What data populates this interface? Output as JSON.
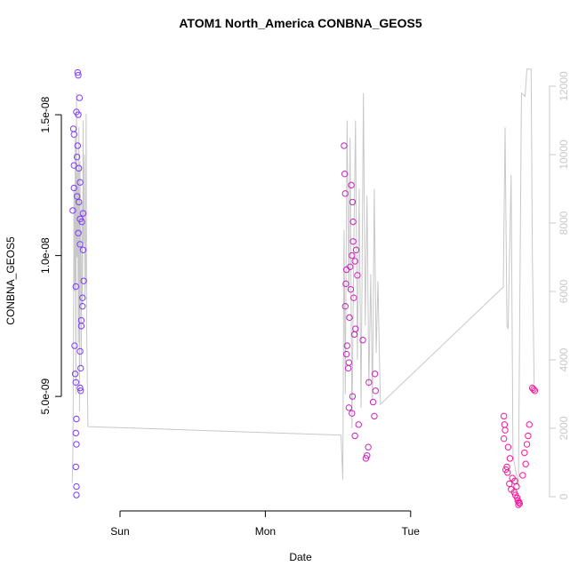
{
  "chart_data": {
    "type": "scatter",
    "title": "ATOM1 North_America CONBNA_GEOS5",
    "x_label": "Date",
    "y_label": "CONBNA_GEOS5",
    "xlim": [
      -9.25,
      70.5
    ],
    "xticks": [
      {
        "value": 0,
        "label": "Sun"
      },
      {
        "value": 24,
        "label": "Mon"
      },
      {
        "value": 48,
        "label": "Tue"
      }
    ],
    "ylim": [
      1.03e-09,
      1.718e-08
    ],
    "yticks": [
      {
        "value": 5e-09,
        "label": "5.0e-09"
      },
      {
        "value": 1e-08,
        "label": "1.0e-08"
      },
      {
        "value": 1.5e-08,
        "label": "1.5e-08"
      }
    ],
    "y2lim": [
      -338,
      12961
    ],
    "y2ticks": [
      0,
      2000,
      4000,
      6000,
      8000,
      10000,
      12000
    ],
    "y2_color": "#c8c8c8",
    "color_range": [
      "#7a3cff",
      "#ff1493"
    ],
    "x": [
      -7.0,
      -6.9,
      -6.7,
      -7.2,
      -6.9,
      -7.7,
      -7.6,
      -7.0,
      -7.1,
      -7.6,
      -6.8,
      -6.6,
      -7.6,
      -7.1,
      -6.8,
      -7.8,
      -6.1,
      -6.6,
      -6.3,
      -6.9,
      -6.6,
      -6.1,
      -6.0,
      -7.3,
      -6.2,
      -6.2,
      -6.4,
      -6.4,
      -7.5,
      -6.6,
      -6.5,
      -7.4,
      -7.3,
      -6.6,
      -6.5,
      -7.2,
      -7.3,
      -7.2,
      -7.3,
      -7.2,
      -7.2,
      37.0,
      37.1,
      38.2,
      37.2,
      38.4,
      38.5,
      38.5,
      39.0,
      38.3,
      38.8,
      38.0,
      37.4,
      39.2,
      37.3,
      38.1,
      38.6,
      37.2,
      37.9,
      38.9,
      38.7,
      40.1,
      37.5,
      37.4,
      37.8,
      37.7,
      42.1,
      41.1,
      42.2,
      38.4,
      41.8,
      37.8,
      38.3,
      42.0,
      39.4,
      38.8,
      41.0,
      40.8,
      40.6,
      63.4,
      63.5,
      63.6,
      63.4,
      64.1,
      64.4,
      63.9,
      64.0,
      64.8,
      65.2,
      64.3,
      65.5,
      64.6,
      65.1,
      65.3,
      65.6,
      65.7,
      65.9,
      66.0,
      65.8,
      63.7,
      66.5,
      67.0,
      66.8,
      67.2,
      67.4,
      67.6,
      68.1,
      68.3,
      68.5
    ],
    "values": [
      1.65e-08,
      1.64e-08,
      1.56e-08,
      1.51e-08,
      1.5e-08,
      1.45e-08,
      1.43e-08,
      1.39e-08,
      1.35e-08,
      1.32e-08,
      1.31e-08,
      1.26e-08,
      1.24e-08,
      1.21e-08,
      1.19e-08,
      1.16e-08,
      1.15e-08,
      1.13e-08,
      1.12e-08,
      1.08e-08,
      1.04e-08,
      1.02e-08,
      9.1e-09,
      8.9e-09,
      8.5e-09,
      8.2e-09,
      7.7e-09,
      7.5e-09,
      6.8e-09,
      6.6e-09,
      6e-09,
      5.8e-09,
      5.5e-09,
      5.3e-09,
      5.2e-09,
      4.2e-09,
      3.7e-09,
      3.3e-09,
      2.5e-09,
      1.8e-09,
      1.5e-09,
      1.39e-08,
      1.29e-08,
      1.25e-08,
      1.22e-08,
      1.19e-08,
      1.12e-08,
      1.05e-08,
      1.02e-08,
      1e-08,
      9.8e-09,
      9.6e-09,
      9.5e-09,
      9.3e-09,
      9e-09,
      8.8e-09,
      8.5e-09,
      8.2e-09,
      7.8e-09,
      7.4e-09,
      7.2e-09,
      7e-09,
      6.8e-09,
      6.5e-09,
      6.2e-09,
      6e-09,
      5.8e-09,
      5.5e-09,
      5.2e-09,
      5e-09,
      4.8e-09,
      4.6e-09,
      4.4e-09,
      4.3e-09,
      4e-09,
      3.6e-09,
      3.2e-09,
      2.9e-09,
      2.8e-09,
      4.3e-09,
      4e-09,
      3.8e-09,
      3.5e-09,
      3.2e-09,
      2.8e-09,
      2.5e-09,
      2.3e-09,
      2.1e-09,
      2e-09,
      1.9e-09,
      1.8e-09,
      1.7e-09,
      1.6e-09,
      1.5e-09,
      1.4e-09,
      1.3e-09,
      1.25e-09,
      1.2e-09,
      1.15e-09,
      2.4e-09,
      2.2e-09,
      2.6e-09,
      3e-09,
      3.3e-09,
      3.6e-09,
      4e-09,
      5.3e-09,
      5.25e-09,
      5.2e-09
    ],
    "line": {
      "type": "line",
      "axis": "y2",
      "color": "#c8c8c8",
      "x": [
        -7.9,
        -7.8,
        -7.7,
        -7.6,
        -7.5,
        -7.4,
        -7.3,
        -7.2,
        -7.1,
        -7.0,
        -6.9,
        -6.8,
        -6.7,
        -6.6,
        -6.5,
        -6.4,
        -6.3,
        -6.2,
        -6.1,
        -6.0,
        -5.9,
        -5.8,
        -5.7,
        -5.6,
        -5.5,
        -5.3,
        36.5,
        36.8,
        37.0,
        37.2,
        37.5,
        37.8,
        38.0,
        38.3,
        38.6,
        38.9,
        39.2,
        39.5,
        39.8,
        40.2,
        40.5,
        40.8,
        41.1,
        41.4,
        41.7,
        42.0,
        42.3,
        42.6,
        43.0,
        63.3,
        63.6,
        63.9,
        64.1,
        64.6,
        64.9,
        65.8,
        66.3,
        66.9,
        67.2,
        67.9,
        68.1,
        68.4
      ],
      "values": [
        400,
        1200,
        4000,
        9000,
        6000,
        10500,
        3000,
        11800,
        7000,
        9500,
        4500,
        10800,
        2500,
        9800,
        6500,
        3800,
        8600,
        5600,
        11000,
        7400,
        10000,
        5800,
        6500,
        11200,
        4800,
        2050,
        1800,
        500,
        7800,
        3000,
        11000,
        6000,
        10500,
        2000,
        7200,
        11000,
        4000,
        9000,
        2600,
        11800,
        5000,
        8800,
        3200,
        6500,
        2800,
        9000,
        4200,
        6300,
        2700,
        6130,
        10800,
        5000,
        4900,
        9400,
        1200,
        300,
        11800,
        11700,
        12500,
        12500,
        7000,
        3300
      ]
    }
  }
}
